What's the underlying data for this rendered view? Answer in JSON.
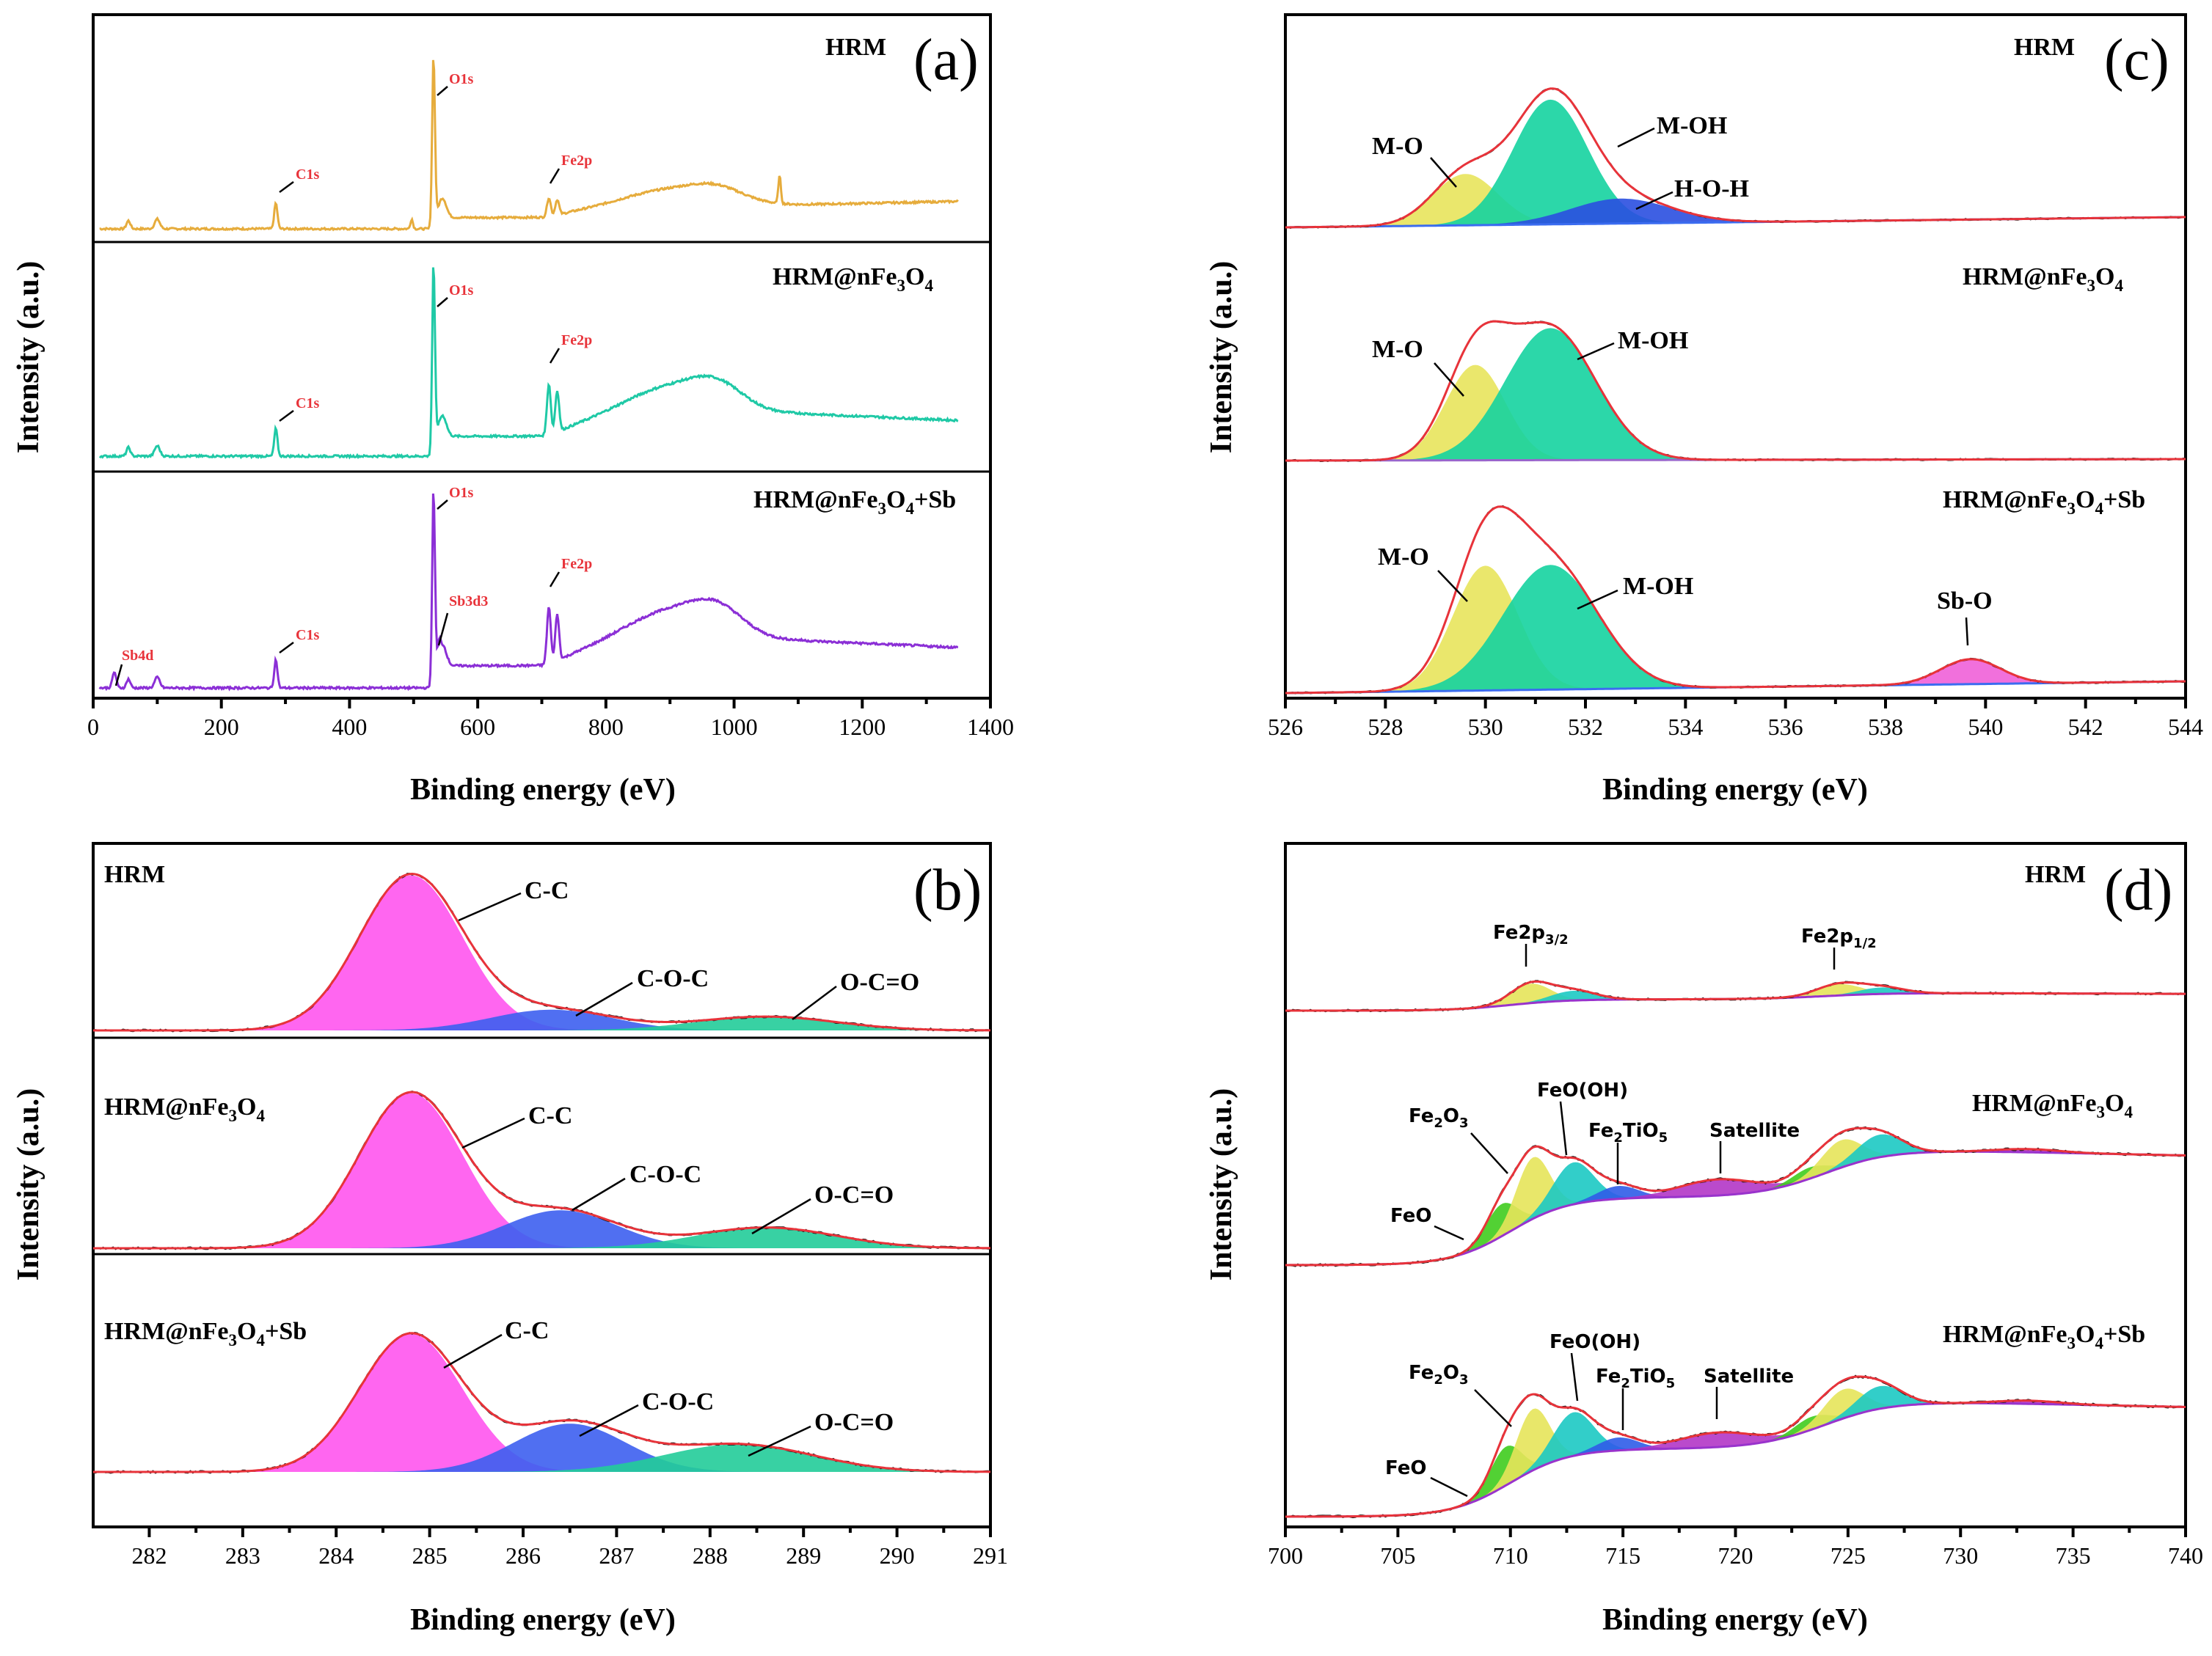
{
  "colors": {
    "survey_hrm": "#e6ac3c",
    "survey_nfe": "#1fc9a6",
    "survey_sb": "#8b2fd6",
    "envelope": "#e8333a",
    "raw": "#1a1a1a",
    "c_c": "#ff55ee",
    "c_o_c": "#3d5ff0",
    "o_c_o": "#22cc99",
    "m_o": "#e8e45c",
    "m_oh": "#15d3a0",
    "h_o_h": "#2a4fe0",
    "sb_o": "#f060d8",
    "feo": "#3fcc1e",
    "fe2o3": "#e6e45a",
    "feooh": "#1cc9c3",
    "fe2tio5": "#2f5ce8",
    "satellite": "#b236c7",
    "background": "#9933cc"
  },
  "chart_data": [
    {
      "id": "a",
      "type": "line",
      "panel_letter": "(a)",
      "xlabel": "Binding energy (eV)",
      "ylabel": "Intensity (a.u.)",
      "xlim": [
        0,
        1400
      ],
      "xticks": [
        "0",
        "200",
        "400",
        "600",
        "800",
        "1000",
        "1200",
        "1400"
      ],
      "series": [
        {
          "name": "HRM",
          "label": "HRM",
          "peaks": [
            {
              "name": "C1s",
              "label": "C1s",
              "x": 285
            },
            {
              "name": "O1s",
              "label": "O1s",
              "x": 531
            },
            {
              "name": "Fe2p",
              "label": "Fe2p",
              "x": 711
            }
          ]
        },
        {
          "name": "HRM@nFe3O4",
          "label_main": "HRM@nFe",
          "label_sub1": "3",
          "label_mid": "O",
          "label_sub2": "4",
          "peaks": [
            {
              "name": "C1s",
              "label": "C1s",
              "x": 285
            },
            {
              "name": "O1s",
              "label": "O1s",
              "x": 531
            },
            {
              "name": "Fe2p",
              "label": "Fe2p",
              "x": 711
            }
          ]
        },
        {
          "name": "HRM@nFe3O4+Sb",
          "label_main": "HRM@nFe",
          "label_sub1": "3",
          "label_mid": "O",
          "label_sub2": "4",
          "label_tail": "+Sb",
          "peaks": [
            {
              "name": "Sb4d",
              "label": "Sb4d",
              "x": 33
            },
            {
              "name": "C1s",
              "label": "C1s",
              "x": 285
            },
            {
              "name": "O1s",
              "label": "O1s",
              "x": 531
            },
            {
              "name": "Sb3d3",
              "label": "Sb3d3",
              "x": 540
            },
            {
              "name": "Fe2p",
              "label": "Fe2p",
              "x": 711
            }
          ]
        }
      ]
    },
    {
      "id": "b",
      "type": "area",
      "panel_letter": "(b)",
      "xlabel": "Binding energy (eV)",
      "ylabel": "Intensity (a.u.)",
      "xlim": [
        281.4,
        291
      ],
      "xticks": [
        "282",
        "283",
        "284",
        "285",
        "286",
        "287",
        "288",
        "289",
        "290",
        "291"
      ],
      "series": [
        {
          "name": "HRM",
          "label": "HRM",
          "components": [
            {
              "label": "C-C",
              "center": 284.8,
              "height": 0.9
            },
            {
              "label": "C-O-C",
              "center": 286.3,
              "height": 0.12
            },
            {
              "label": "O-C=O",
              "center": 288.6,
              "height": 0.08
            }
          ]
        },
        {
          "name": "HRM@nFe3O4",
          "label_main": "HRM@nFe",
          "label_sub1": "3",
          "label_mid": "O",
          "label_sub2": "4",
          "components": [
            {
              "label": "C-C",
              "center": 284.8,
              "height": 0.9
            },
            {
              "label": "C-O-C",
              "center": 286.4,
              "height": 0.22
            },
            {
              "label": "O-C=O",
              "center": 288.6,
              "height": 0.12
            }
          ]
        },
        {
          "name": "HRM@nFe3O4+Sb",
          "label_main": "HRM@nFe",
          "label_sub1": "3",
          "label_mid": "O",
          "label_sub2": "4",
          "label_tail": "+Sb",
          "components": [
            {
              "label": "C-C",
              "center": 284.8,
              "height": 0.8
            },
            {
              "label": "C-O-C",
              "center": 286.5,
              "height": 0.28
            },
            {
              "label": "O-C=O",
              "center": 288.3,
              "height": 0.16
            }
          ]
        }
      ]
    },
    {
      "id": "c",
      "type": "area",
      "panel_letter": "(c)",
      "xlabel": "Binding energy (eV)",
      "ylabel": "Intensity (a.u.)",
      "xlim": [
        526,
        544
      ],
      "xticks": [
        "526",
        "528",
        "530",
        "532",
        "534",
        "536",
        "538",
        "540",
        "542",
        "544"
      ],
      "series": [
        {
          "name": "HRM",
          "label": "HRM",
          "components": [
            {
              "label": "M-O",
              "center": 529.6,
              "height": 0.35
            },
            {
              "label": "M-OH",
              "center": 531.3,
              "height": 0.85
            },
            {
              "label": "H-O-H",
              "center": 532.7,
              "height": 0.17
            }
          ]
        },
        {
          "name": "HRM@nFe3O4",
          "label_main": "HRM@nFe",
          "label_sub1": "3",
          "label_mid": "O",
          "label_sub2": "4",
          "components": [
            {
              "label": "M-O",
              "center": 529.8,
              "height": 0.65
            },
            {
              "label": "M-OH",
              "center": 531.3,
              "height": 0.9
            }
          ]
        },
        {
          "name": "HRM@nFe3O4+Sb",
          "label_main": "HRM@nFe",
          "label_sub1": "3",
          "label_mid": "O",
          "label_sub2": "4",
          "label_tail": "+Sb",
          "components": [
            {
              "label": "M-O",
              "center": 530.0,
              "height": 0.85
            },
            {
              "label": "M-OH",
              "center": 531.3,
              "height": 0.85
            },
            {
              "label": "Sb-O",
              "center": 539.7,
              "height": 0.17
            }
          ]
        }
      ]
    },
    {
      "id": "d",
      "type": "area",
      "panel_letter": "(d)",
      "xlabel": "Binding energy (eV)",
      "ylabel": "Intensity (a.u.)",
      "xlim": [
        700,
        740
      ],
      "xticks": [
        "700",
        "705",
        "710",
        "715",
        "720",
        "725",
        "730",
        "735",
        "740"
      ],
      "series": [
        {
          "name": "HRM",
          "label": "HRM",
          "peak_labels": [
            {
              "main": "Fe2p",
              "sub": "3/2",
              "x": 710.9
            },
            {
              "main": "Fe2p",
              "sub": "1/2",
              "x": 724.5
            }
          ]
        },
        {
          "name": "HRM@nFe3O4",
          "label_main": "HRM@nFe",
          "label_sub1": "3",
          "label_mid": "O",
          "label_sub2": "4",
          "components": [
            {
              "label_main": "FeO",
              "center": 709.6
            },
            {
              "label_main": "Fe",
              "label_sub1": "2",
              "label_mid": "O",
              "label_sub2": "3",
              "center": 711.0
            },
            {
              "label_main": "FeO(OH)",
              "center": 712.8
            },
            {
              "label_main": "Fe",
              "label_sub1": "2",
              "label_mid": "TiO",
              "label_sub2": "5",
              "center": 714.8
            },
            {
              "label_main": "Satellite",
              "center": 719.2
            }
          ]
        },
        {
          "name": "HRM@nFe3O4+Sb",
          "label_main": "HRM@nFe",
          "label_sub1": "3",
          "label_mid": "O",
          "label_sub2": "4",
          "label_tail": "+Sb",
          "components": [
            {
              "label_main": "FeO",
              "center": 709.8
            },
            {
              "label_main": "Fe",
              "label_sub1": "2",
              "label_mid": "O",
              "label_sub2": "3",
              "center": 711.0
            },
            {
              "label_main": "FeO(OH)",
              "center": 712.8
            },
            {
              "label_main": "Fe",
              "label_sub1": "2",
              "label_mid": "TiO",
              "label_sub2": "5",
              "center": 714.8
            },
            {
              "label_main": "Satellite",
              "center": 719.2
            }
          ]
        }
      ]
    }
  ]
}
